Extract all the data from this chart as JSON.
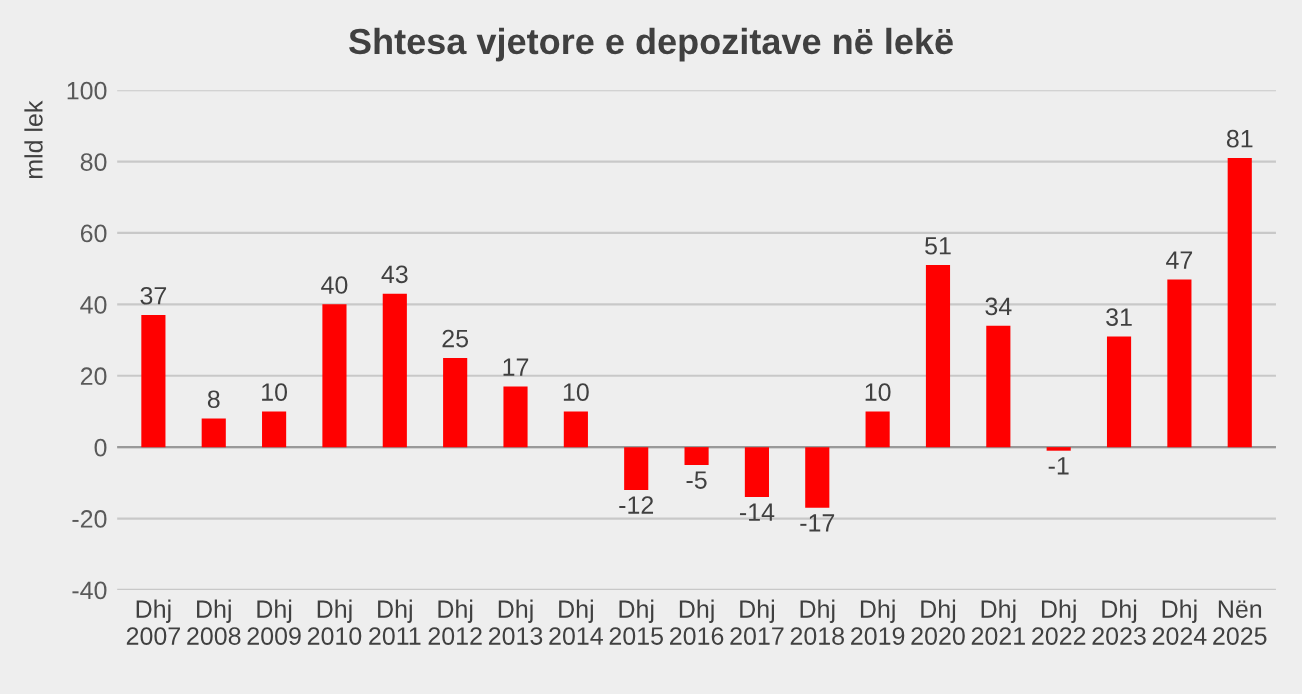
{
  "chart_data": {
    "type": "bar",
    "title": "Shtesa vjetore e depozitave në lekë",
    "ylabel": "mld lek",
    "categories": [
      "Dhj\n2007",
      "Dhj\n2008",
      "Dhj\n2009",
      "Dhj\n2010",
      "Dhj\n2011",
      "Dhj\n2012",
      "Dhj\n2013",
      "Dhj\n2014",
      "Dhj\n2015",
      "Dhj\n2016",
      "Dhj\n2017",
      "Dhj\n2018",
      "Dhj\n2019",
      "Dhj\n2020",
      "Dhj\n2021",
      "Dhj\n2022",
      "Dhj\n2023",
      "Dhj\n2024",
      "Nën\n2025"
    ],
    "values": [
      37,
      8,
      10,
      40,
      43,
      25,
      17,
      10,
      -12,
      -5,
      -14,
      -17,
      10,
      51,
      34,
      -1,
      31,
      47,
      81
    ],
    "color": "#ff0000",
    "data_labels": true,
    "ylim": [
      -40,
      100
    ],
    "yticks": [
      -40,
      -20,
      0,
      20,
      40,
      60,
      80,
      100
    ],
    "grid": "y"
  }
}
